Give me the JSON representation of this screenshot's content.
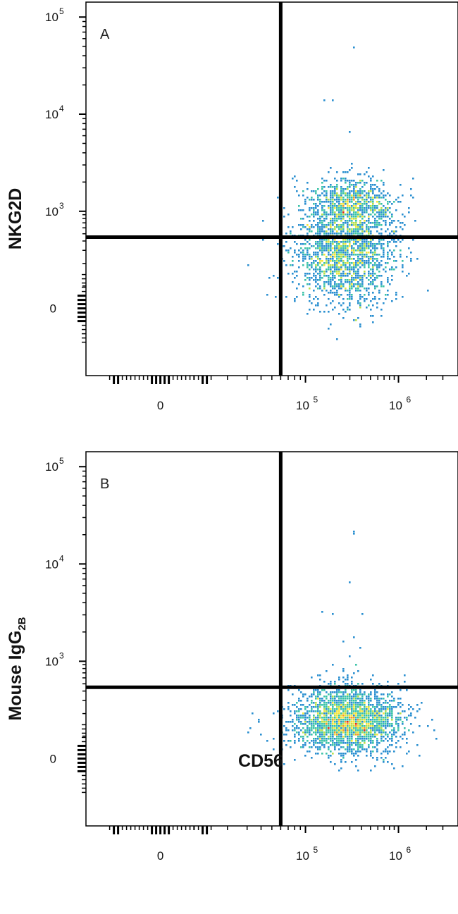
{
  "chart_data": [
    {
      "type": "scatter",
      "panel": "A",
      "xlabel": "CD56",
      "ylabel": "NKG2D",
      "ylabel_subscript": "",
      "x_scale": "biexponential",
      "y_scale": "biexponential",
      "x_ticks": [
        {
          "base": "0",
          "exp": ""
        },
        {
          "base": "10",
          "exp": "5"
        },
        {
          "base": "10",
          "exp": "6"
        }
      ],
      "y_ticks": [
        {
          "base": "10",
          "exp": "5"
        },
        {
          "base": "10",
          "exp": "4"
        },
        {
          "base": "10",
          "exp": "3"
        },
        {
          "base": "0",
          "exp": ""
        }
      ],
      "quadrant_gate": {
        "x": 60000,
        "y": 450
      },
      "populations": [
        {
          "name": "",
          "n": 1900,
          "cx": 270000,
          "cy": 280,
          "sx": 0.28,
          "sy": 0.75
        },
        {
          "name": "",
          "n": 700,
          "cx": 320000,
          "cy": 1200,
          "sx": 0.22,
          "sy": 0.35
        }
      ],
      "outliers": [
        [
          160000,
          14000
        ],
        [
          200000,
          14000
        ],
        [
          330000,
          48000
        ],
        [
          300000,
          6500
        ],
        [
          280000,
          2500
        ]
      ],
      "grid": false,
      "density_colormap": [
        "#1f3a93",
        "#2a8fd0",
        "#3cc3a8",
        "#b7e04a",
        "#f3e43a",
        "#f59a2a",
        "#e32b1c"
      ]
    },
    {
      "type": "scatter",
      "panel": "B",
      "xlabel": "CD56",
      "ylabel": "Mouse IgG",
      "ylabel_subscript": "2B",
      "x_scale": "biexponential",
      "y_scale": "biexponential",
      "x_ticks": [
        {
          "base": "0",
          "exp": ""
        },
        {
          "base": "10",
          "exp": "5"
        },
        {
          "base": "10",
          "exp": "6"
        }
      ],
      "y_ticks": [
        {
          "base": "10",
          "exp": "5"
        },
        {
          "base": "10",
          "exp": "4"
        },
        {
          "base": "10",
          "exp": "3"
        },
        {
          "base": "0",
          "exp": ""
        }
      ],
      "quadrant_gate": {
        "x": 60000,
        "y": 450
      },
      "populations": [
        {
          "name": "",
          "n": 2600,
          "cx": 280000,
          "cy": 160,
          "sx": 0.28,
          "sy": 0.45
        }
      ],
      "outliers": [
        [
          330000,
          22000
        ],
        [
          340000,
          20000
        ],
        [
          300000,
          6500
        ],
        [
          150000,
          3200
        ],
        [
          200000,
          3000
        ],
        [
          420000,
          3000
        ],
        [
          260000,
          1600
        ],
        [
          330000,
          1800
        ],
        [
          380000,
          1400
        ],
        [
          250000,
          800
        ],
        [
          300000,
          1100
        ],
        [
          360000,
          900
        ],
        [
          200000,
          900
        ],
        [
          280000,
          600
        ],
        [
          330000,
          700
        ]
      ],
      "grid": false,
      "density_colormap": [
        "#1f3a93",
        "#2a8fd0",
        "#3cc3a8",
        "#b7e04a",
        "#f3e43a",
        "#f59a2a",
        "#e32b1c"
      ]
    }
  ],
  "shared_xlabel": "CD56"
}
